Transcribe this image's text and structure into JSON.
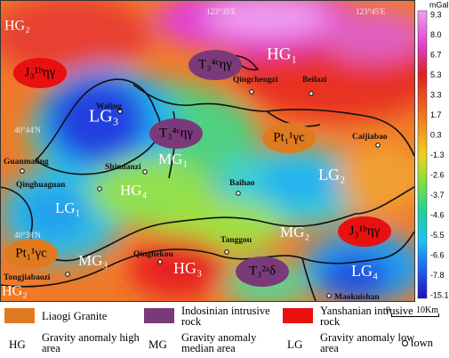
{
  "map": {
    "unit": "mGal",
    "colorbar_ticks": [
      "9.3",
      "8.0",
      "6.7",
      "5.3",
      "3.3",
      "1.7",
      "0.3",
      "-1.3",
      "-2.6",
      "-3.7",
      "-4.6",
      "-5.5",
      "-6.6",
      "-7.8",
      "-15.1"
    ],
    "coordinates": [
      "123°35'E",
      "123°45'E",
      "40°44'N",
      "40°38'N"
    ],
    "regions": [
      "HG₂",
      "HG₁",
      "LG₃",
      "MG₁",
      "LG₂",
      "HG₄",
      "LG₁",
      "MG₂",
      "MG₃",
      "HG₃",
      "LG₄",
      "HG₂"
    ],
    "rocks": [
      "J₃¹ᵇηγ",
      "T₃⁴ᶜηγ",
      "T₃⁴ᶜηγ",
      "Pt₁¹γc",
      "J₃¹ᵇηγ",
      "Pt₁¹γc",
      "T₃²ᵃδ"
    ],
    "towns": [
      "Qingchengzi",
      "Beilazi",
      "Waling",
      "Caijiabao",
      "Guanmaling",
      "Shimianzi",
      "Qinghuaguan",
      "Baihao",
      "Tanggou",
      "Qinghekou",
      "Tongjiabaozi",
      "Maokuishan"
    ]
  },
  "legend": {
    "rock_types": [
      "Liaogi Granite",
      "Indosinian intrusive rock",
      "Yanshanian intrusive rock"
    ],
    "scale": [
      "0",
      "10Km"
    ],
    "areas": [
      {
        "abbr": "HG",
        "label": "Gravity anomaly high area"
      },
      {
        "abbr": "MG",
        "label": "Gravity anomaly median area"
      },
      {
        "abbr": "LG",
        "label": "Gravity anomaly low area"
      }
    ],
    "town": "town"
  }
}
